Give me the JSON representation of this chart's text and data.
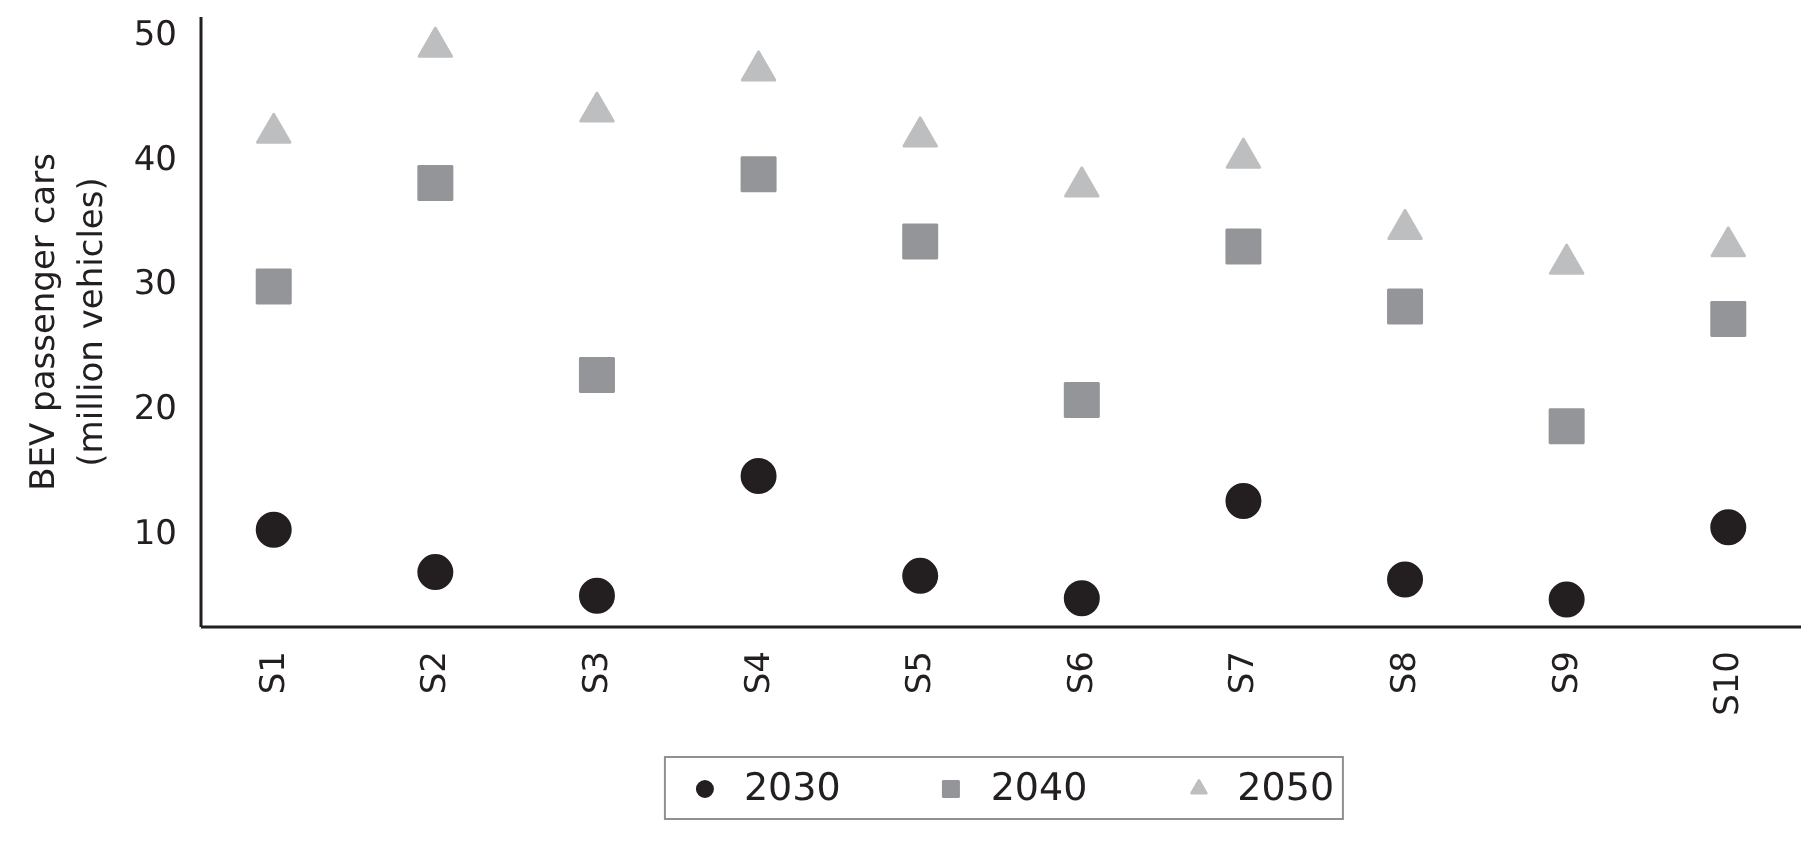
{
  "chart_data": {
    "type": "scatter",
    "ylabel": "BEV passenger cars\n(million vehicles)",
    "categories": [
      "S1",
      "S2",
      "S3",
      "S4",
      "S5",
      "S6",
      "S7",
      "S8",
      "S9",
      "S10"
    ],
    "series": [
      {
        "name": "2030",
        "color": "#231f20",
        "marker": "circle",
        "values": [
          10.1,
          6.7,
          4.8,
          14.4,
          6.4,
          4.6,
          12.4,
          6.1,
          4.5,
          10.3
        ]
      },
      {
        "name": "2040",
        "color": "#939598",
        "marker": "square",
        "values": [
          29.6,
          37.9,
          22.5,
          38.6,
          33.2,
          20.5,
          32.8,
          28.0,
          18.4,
          27.0
        ]
      },
      {
        "name": "2050",
        "color": "#bcbec0",
        "marker": "triangle",
        "values": [
          41.9,
          48.8,
          43.6,
          46.9,
          41.6,
          37.6,
          39.9,
          34.2,
          31.4,
          32.8
        ]
      }
    ],
    "ylim": [
      2.3,
      51.2
    ],
    "yticks": [
      10,
      20,
      30,
      40,
      50
    ],
    "grid": false,
    "legend": "bottom"
  }
}
